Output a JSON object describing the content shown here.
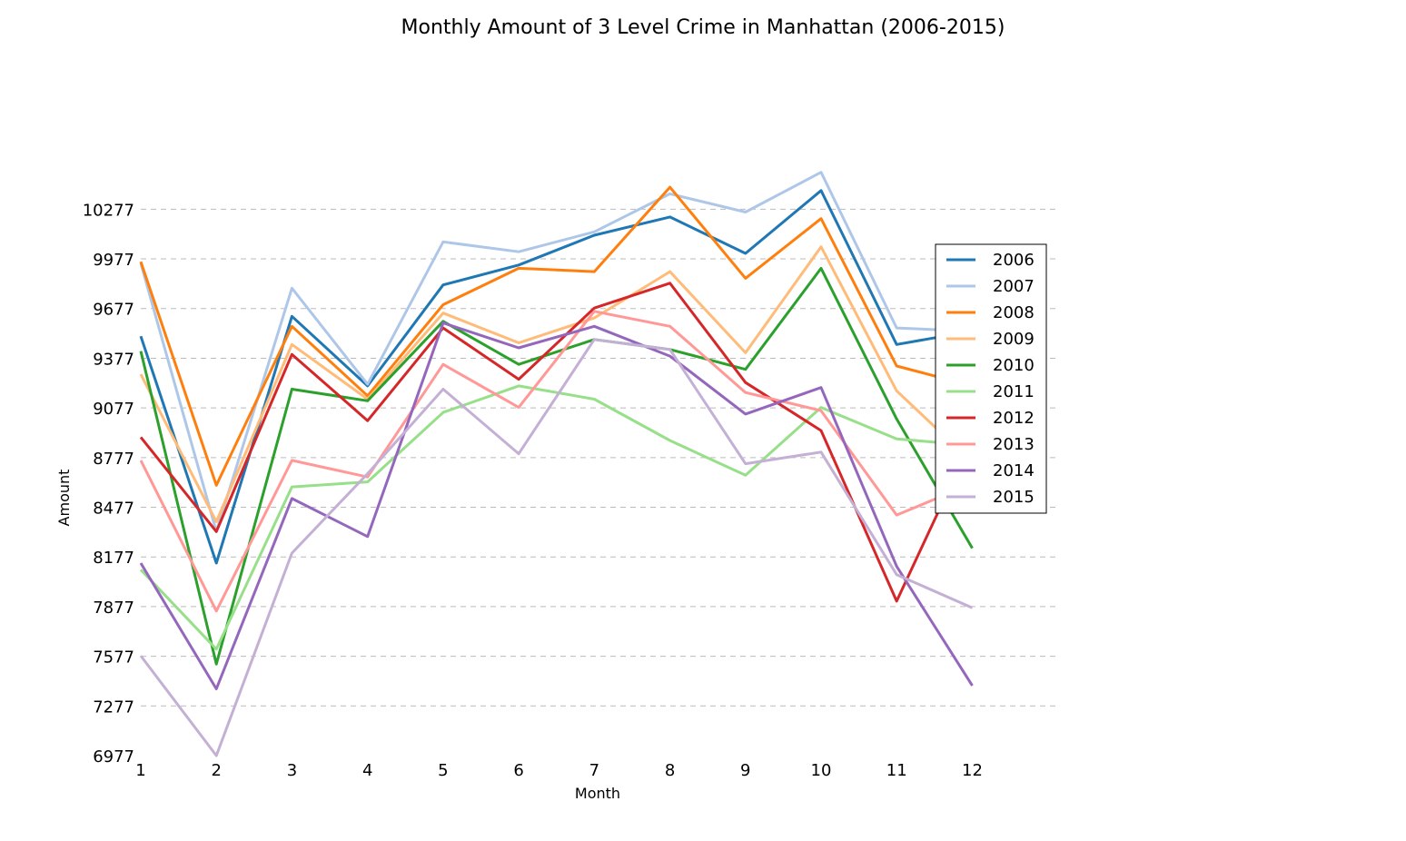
{
  "chart_data": {
    "type": "line",
    "title": "Monthly Amount of 3 Level Crime in Manhattan (2006-2015)",
    "xlabel": "Month",
    "ylabel": "Amount",
    "x": [
      1,
      2,
      3,
      4,
      5,
      6,
      7,
      8,
      9,
      10,
      11,
      12
    ],
    "x_ticks": [
      "1",
      "2",
      "3",
      "4",
      "5",
      "6",
      "7",
      "8",
      "9",
      "10",
      "11",
      "12"
    ],
    "xlim": [
      1,
      13.1
    ],
    "ylim": [
      6977,
      10800
    ],
    "y_ticks": [
      6977,
      7277,
      7577,
      7877,
      8177,
      8477,
      8777,
      9077,
      9377,
      9677,
      9977,
      10277
    ],
    "y_tick_labels": [
      "6977",
      "7277",
      "7577",
      "7877",
      "8177",
      "8477",
      "8777",
      "9077",
      "9377",
      "9677",
      "9977",
      "10277"
    ],
    "grid": "horizontal-dashed",
    "legend_position": "right",
    "series": [
      {
        "name": "2006",
        "color": "#1f77b4",
        "values": [
          9510,
          8140,
          9630,
          9210,
          9820,
          9940,
          10120,
          10230,
          10010,
          10390,
          9460,
          9540
        ]
      },
      {
        "name": "2007",
        "color": "#aec7e8",
        "values": [
          9950,
          8330,
          9800,
          9220,
          10080,
          10020,
          10140,
          10370,
          10260,
          10500,
          9560,
          9540
        ]
      },
      {
        "name": "2008",
        "color": "#ff7f0e",
        "values": [
          9960,
          8610,
          9570,
          9150,
          9700,
          9920,
          9900,
          10410,
          9860,
          10220,
          9330,
          9210
        ]
      },
      {
        "name": "2009",
        "color": "#ffbb78",
        "values": [
          9280,
          8390,
          9460,
          9130,
          9650,
          9470,
          9620,
          9900,
          9410,
          10050,
          9180,
          8750
        ]
      },
      {
        "name": "2010",
        "color": "#2ca02c",
        "values": [
          9420,
          7530,
          9190,
          9120,
          9600,
          9340,
          9490,
          9430,
          9310,
          9920,
          9010,
          8230
        ]
      },
      {
        "name": "2011",
        "color": "#98df8a",
        "values": [
          8100,
          7620,
          8600,
          8630,
          9050,
          9210,
          9130,
          8880,
          8670,
          9080,
          8890,
          8850
        ]
      },
      {
        "name": "2012",
        "color": "#d62728",
        "values": [
          8900,
          8330,
          9400,
          9000,
          9560,
          9250,
          9680,
          9830,
          9230,
          8940,
          7910,
          8890
        ]
      },
      {
        "name": "2013",
        "color": "#ff9896",
        "values": [
          8760,
          7850,
          8760,
          8660,
          9340,
          9080,
          9660,
          9570,
          9170,
          9060,
          8430,
          8620
        ]
      },
      {
        "name": "2014",
        "color": "#9467bd",
        "values": [
          8140,
          7380,
          8530,
          8300,
          9590,
          9440,
          9570,
          9390,
          9040,
          9200,
          8120,
          7400
        ]
      },
      {
        "name": "2015",
        "color": "#c5b0d5",
        "values": [
          7580,
          6977,
          8200,
          8680,
          9190,
          8800,
          9490,
          9430,
          8740,
          8810,
          8070,
          7870
        ]
      }
    ]
  }
}
